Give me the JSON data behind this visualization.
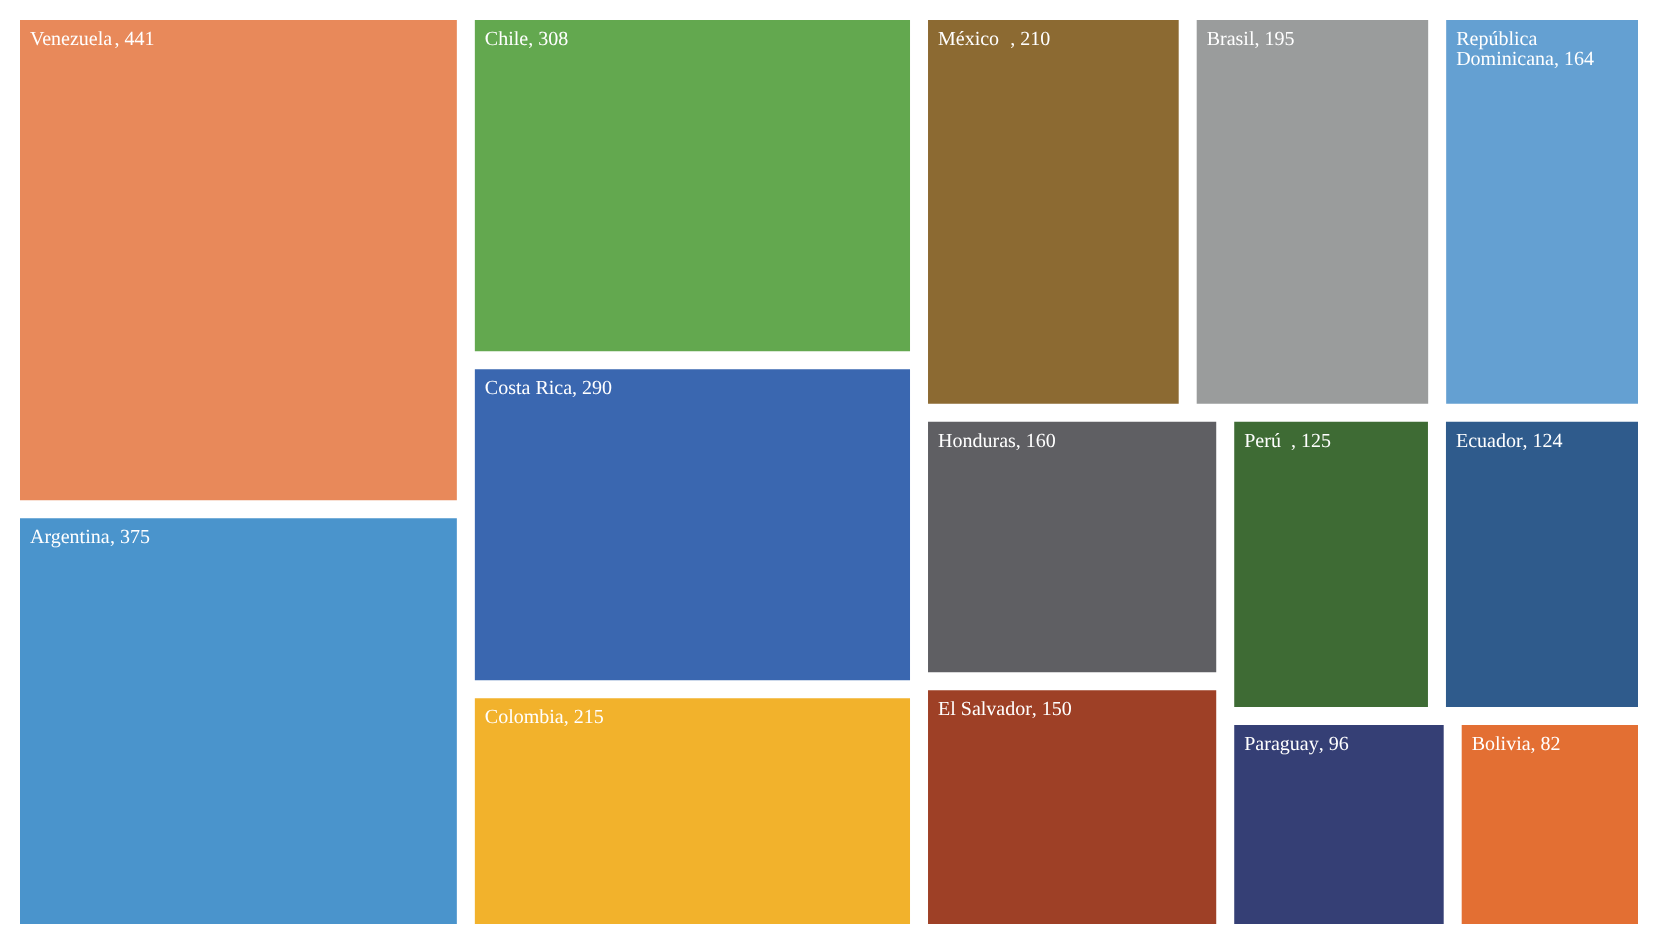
{
  "chart_data": {
    "type": "other",
    "categories": [
      "Venezuela",
      "Argentina",
      "Chile",
      "Costa Rica",
      "Colombia",
      "México",
      "Brasil",
      "República Dominicana",
      "Honduras",
      "El Salvador",
      "Perú",
      "Ecuador",
      "Paraguay",
      "Bolivia"
    ],
    "values": [
      441,
      375,
      308,
      290,
      215,
      210,
      195,
      164,
      160,
      150,
      125,
      124,
      96,
      82
    ],
    "value_labels": [
      ", 441",
      ", 375",
      ", 308",
      ", 290",
      ", 215",
      ", 210",
      ", 195",
      ", 164",
      ", 160",
      ", 150",
      ", 125",
      ", 124",
      ", 96",
      ", 82"
    ],
    "colors": [
      "#e8895a",
      "#4a94cc",
      "#63a84f",
      "#3a67b0",
      "#f2b22c",
      "#8c6a32",
      "#9a9c9c",
      "#64a0d2",
      "#5f5f63",
      "#9e4026",
      "#3e6b34",
      "#2f5b8c",
      "#353f75",
      "#e36f33"
    ]
  }
}
